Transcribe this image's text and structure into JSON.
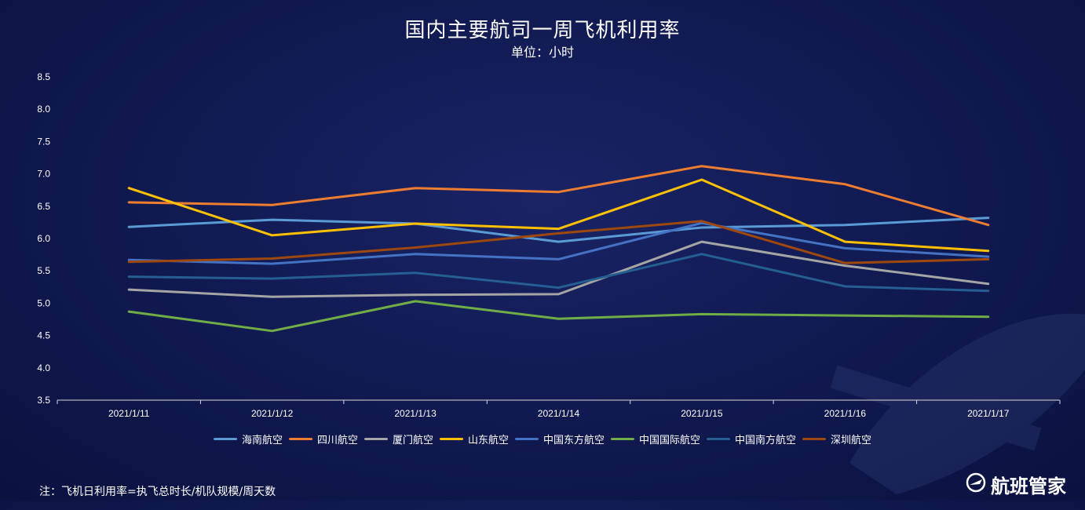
{
  "header": {
    "title": "国内主要航司一周飞机利用率",
    "subtitle": "单位：小时"
  },
  "footer": {
    "note": "注：飞机日利用率=执飞总时长/机队规模/周天数",
    "brand": "航班管家"
  },
  "chart_data": {
    "type": "line",
    "title": "国内主要航司一周飞机利用率",
    "subtitle": "单位：小时",
    "xlabel": "",
    "ylabel": "",
    "categories": [
      "2021/1/11",
      "2021/1/12",
      "2021/1/13",
      "2021/1/14",
      "2021/1/15",
      "2021/1/16",
      "2021/1/17"
    ],
    "ylim": [
      3.5,
      8.5
    ],
    "yticks": [
      "3.5",
      "4.0",
      "4.5",
      "5.0",
      "5.5",
      "6.0",
      "6.5",
      "7.0",
      "7.5",
      "8.0",
      "8.5"
    ],
    "legend_position": "bottom",
    "grid": false,
    "series": [
      {
        "name": "海南航空",
        "color": "#5b9bd5",
        "values": [
          6.18,
          6.29,
          6.23,
          5.95,
          6.17,
          6.21,
          6.32
        ]
      },
      {
        "name": "四川航空",
        "color": "#ed7d31",
        "values": [
          6.56,
          6.52,
          6.78,
          6.72,
          7.12,
          6.84,
          6.21
        ]
      },
      {
        "name": "厦门航空",
        "color": "#a5a5a5",
        "values": [
          5.21,
          5.1,
          5.13,
          5.14,
          5.95,
          5.58,
          5.3
        ]
      },
      {
        "name": "山东航空",
        "color": "#ffc000",
        "values": [
          6.78,
          6.05,
          6.23,
          6.15,
          6.91,
          5.95,
          5.81
        ]
      },
      {
        "name": "中国东方航空",
        "color": "#4472c4",
        "values": [
          5.67,
          5.61,
          5.76,
          5.68,
          6.24,
          5.85,
          5.72
        ]
      },
      {
        "name": "中国国际航空",
        "color": "#70ad47",
        "values": [
          4.87,
          4.57,
          5.03,
          4.76,
          4.83,
          4.81,
          4.79
        ]
      },
      {
        "name": "中国南方航空",
        "color": "#255e91",
        "values": [
          5.41,
          5.38,
          5.47,
          5.24,
          5.76,
          5.26,
          5.19
        ]
      },
      {
        "name": "深圳航空",
        "color": "#9e480e",
        "values": [
          5.64,
          5.69,
          5.86,
          6.08,
          6.27,
          5.62,
          5.68
        ]
      }
    ]
  }
}
